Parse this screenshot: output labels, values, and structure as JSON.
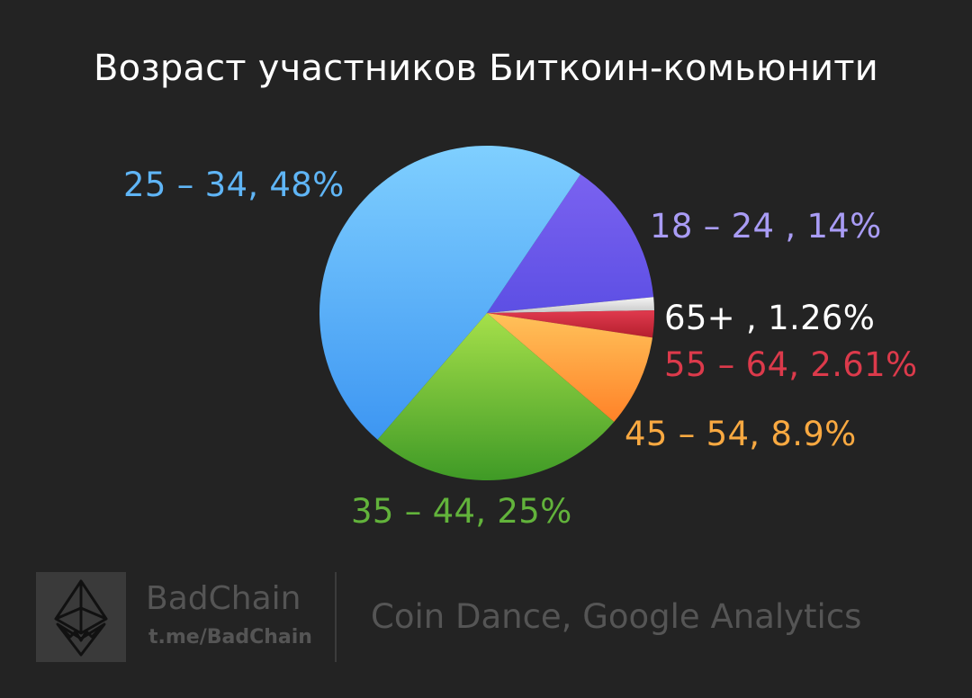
{
  "chart_data": {
    "type": "pie",
    "title": "Возраст участников Биткоин-комьюнити",
    "slices": [
      {
        "label": "18 – 24 , 14%",
        "category": "18 – 24",
        "value": 14,
        "color_top": "#7a62f0",
        "color_bottom": "#5d4fe4",
        "label_color": "#a99cf5"
      },
      {
        "label": "65+ , 1.26%",
        "category": "65+",
        "value": 1.26,
        "color_top": "#f4f4f4",
        "color_bottom": "#c8c8c8",
        "label_color": "#ffffff"
      },
      {
        "label": "55 – 64, 2.61%",
        "category": "55 – 64",
        "value": 2.61,
        "color_top": "#e03a4e",
        "color_bottom": "#b51f2e",
        "label_color": "#dc3a4b"
      },
      {
        "label": "45 – 54, 8.9%",
        "category": "45 – 54",
        "value": 8.9,
        "color_top": "#ffc25a",
        "color_bottom": "#ff8228",
        "label_color": "#f9a941"
      },
      {
        "label": "35 – 44, 25%",
        "category": "35 – 44",
        "value": 25,
        "color_top": "#a6e04a",
        "color_bottom": "#3f9a26",
        "label_color": "#62b33b"
      },
      {
        "label": "25 – 34, 48%",
        "category": "25 – 34",
        "value": 48,
        "color_top": "#7fcfff",
        "color_bottom": "#3d96f2",
        "label_color": "#5fb5f6"
      }
    ]
  },
  "colors": {
    "background": "#232323",
    "title": "#ffffff",
    "footer_text": "#555555",
    "logo_box": "#3a3a3a",
    "logo_icon": "#111111"
  },
  "footer": {
    "logo_icon": "ethereum-diamond-icon",
    "brand_name": "BadChain",
    "brand_link": "t.me/BadChain",
    "sources": "Coin Dance, Google Analytics"
  }
}
